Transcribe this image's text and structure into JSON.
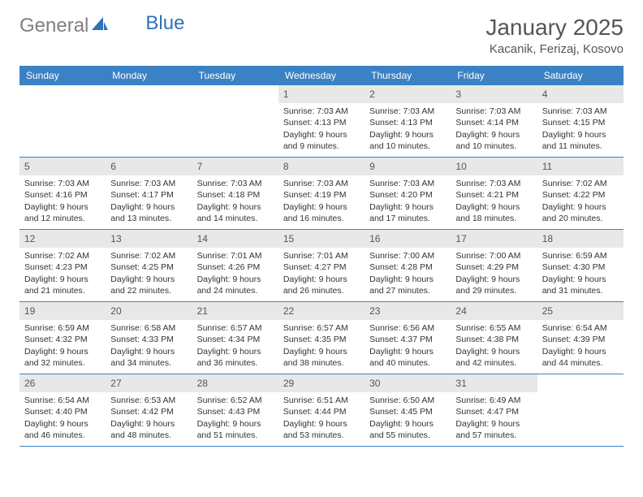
{
  "logo": {
    "text_a": "General",
    "text_b": "Blue"
  },
  "title": "January 2025",
  "location": "Kacanik, Ferizaj, Kosovo",
  "colors": {
    "header_bg": "#3b82c4",
    "header_text": "#ffffff",
    "daynum_bg": "#e8e8e8",
    "border": "#3b82c4",
    "logo_gray": "#808080",
    "logo_blue": "#2e72b8"
  },
  "weekdays": [
    "Sunday",
    "Monday",
    "Tuesday",
    "Wednesday",
    "Thursday",
    "Friday",
    "Saturday"
  ],
  "weeks": [
    [
      {
        "n": "",
        "lines": [
          "",
          "",
          "",
          ""
        ]
      },
      {
        "n": "",
        "lines": [
          "",
          "",
          "",
          ""
        ]
      },
      {
        "n": "",
        "lines": [
          "",
          "",
          "",
          ""
        ]
      },
      {
        "n": "1",
        "lines": [
          "Sunrise: 7:03 AM",
          "Sunset: 4:13 PM",
          "Daylight: 9 hours",
          "and 9 minutes."
        ]
      },
      {
        "n": "2",
        "lines": [
          "Sunrise: 7:03 AM",
          "Sunset: 4:13 PM",
          "Daylight: 9 hours",
          "and 10 minutes."
        ]
      },
      {
        "n": "3",
        "lines": [
          "Sunrise: 7:03 AM",
          "Sunset: 4:14 PM",
          "Daylight: 9 hours",
          "and 10 minutes."
        ]
      },
      {
        "n": "4",
        "lines": [
          "Sunrise: 7:03 AM",
          "Sunset: 4:15 PM",
          "Daylight: 9 hours",
          "and 11 minutes."
        ]
      }
    ],
    [
      {
        "n": "5",
        "lines": [
          "Sunrise: 7:03 AM",
          "Sunset: 4:16 PM",
          "Daylight: 9 hours",
          "and 12 minutes."
        ]
      },
      {
        "n": "6",
        "lines": [
          "Sunrise: 7:03 AM",
          "Sunset: 4:17 PM",
          "Daylight: 9 hours",
          "and 13 minutes."
        ]
      },
      {
        "n": "7",
        "lines": [
          "Sunrise: 7:03 AM",
          "Sunset: 4:18 PM",
          "Daylight: 9 hours",
          "and 14 minutes."
        ]
      },
      {
        "n": "8",
        "lines": [
          "Sunrise: 7:03 AM",
          "Sunset: 4:19 PM",
          "Daylight: 9 hours",
          "and 16 minutes."
        ]
      },
      {
        "n": "9",
        "lines": [
          "Sunrise: 7:03 AM",
          "Sunset: 4:20 PM",
          "Daylight: 9 hours",
          "and 17 minutes."
        ]
      },
      {
        "n": "10",
        "lines": [
          "Sunrise: 7:03 AM",
          "Sunset: 4:21 PM",
          "Daylight: 9 hours",
          "and 18 minutes."
        ]
      },
      {
        "n": "11",
        "lines": [
          "Sunrise: 7:02 AM",
          "Sunset: 4:22 PM",
          "Daylight: 9 hours",
          "and 20 minutes."
        ]
      }
    ],
    [
      {
        "n": "12",
        "lines": [
          "Sunrise: 7:02 AM",
          "Sunset: 4:23 PM",
          "Daylight: 9 hours",
          "and 21 minutes."
        ]
      },
      {
        "n": "13",
        "lines": [
          "Sunrise: 7:02 AM",
          "Sunset: 4:25 PM",
          "Daylight: 9 hours",
          "and 22 minutes."
        ]
      },
      {
        "n": "14",
        "lines": [
          "Sunrise: 7:01 AM",
          "Sunset: 4:26 PM",
          "Daylight: 9 hours",
          "and 24 minutes."
        ]
      },
      {
        "n": "15",
        "lines": [
          "Sunrise: 7:01 AM",
          "Sunset: 4:27 PM",
          "Daylight: 9 hours",
          "and 26 minutes."
        ]
      },
      {
        "n": "16",
        "lines": [
          "Sunrise: 7:00 AM",
          "Sunset: 4:28 PM",
          "Daylight: 9 hours",
          "and 27 minutes."
        ]
      },
      {
        "n": "17",
        "lines": [
          "Sunrise: 7:00 AM",
          "Sunset: 4:29 PM",
          "Daylight: 9 hours",
          "and 29 minutes."
        ]
      },
      {
        "n": "18",
        "lines": [
          "Sunrise: 6:59 AM",
          "Sunset: 4:30 PM",
          "Daylight: 9 hours",
          "and 31 minutes."
        ]
      }
    ],
    [
      {
        "n": "19",
        "lines": [
          "Sunrise: 6:59 AM",
          "Sunset: 4:32 PM",
          "Daylight: 9 hours",
          "and 32 minutes."
        ]
      },
      {
        "n": "20",
        "lines": [
          "Sunrise: 6:58 AM",
          "Sunset: 4:33 PM",
          "Daylight: 9 hours",
          "and 34 minutes."
        ]
      },
      {
        "n": "21",
        "lines": [
          "Sunrise: 6:57 AM",
          "Sunset: 4:34 PM",
          "Daylight: 9 hours",
          "and 36 minutes."
        ]
      },
      {
        "n": "22",
        "lines": [
          "Sunrise: 6:57 AM",
          "Sunset: 4:35 PM",
          "Daylight: 9 hours",
          "and 38 minutes."
        ]
      },
      {
        "n": "23",
        "lines": [
          "Sunrise: 6:56 AM",
          "Sunset: 4:37 PM",
          "Daylight: 9 hours",
          "and 40 minutes."
        ]
      },
      {
        "n": "24",
        "lines": [
          "Sunrise: 6:55 AM",
          "Sunset: 4:38 PM",
          "Daylight: 9 hours",
          "and 42 minutes."
        ]
      },
      {
        "n": "25",
        "lines": [
          "Sunrise: 6:54 AM",
          "Sunset: 4:39 PM",
          "Daylight: 9 hours",
          "and 44 minutes."
        ]
      }
    ],
    [
      {
        "n": "26",
        "lines": [
          "Sunrise: 6:54 AM",
          "Sunset: 4:40 PM",
          "Daylight: 9 hours",
          "and 46 minutes."
        ]
      },
      {
        "n": "27",
        "lines": [
          "Sunrise: 6:53 AM",
          "Sunset: 4:42 PM",
          "Daylight: 9 hours",
          "and 48 minutes."
        ]
      },
      {
        "n": "28",
        "lines": [
          "Sunrise: 6:52 AM",
          "Sunset: 4:43 PM",
          "Daylight: 9 hours",
          "and 51 minutes."
        ]
      },
      {
        "n": "29",
        "lines": [
          "Sunrise: 6:51 AM",
          "Sunset: 4:44 PM",
          "Daylight: 9 hours",
          "and 53 minutes."
        ]
      },
      {
        "n": "30",
        "lines": [
          "Sunrise: 6:50 AM",
          "Sunset: 4:45 PM",
          "Daylight: 9 hours",
          "and 55 minutes."
        ]
      },
      {
        "n": "31",
        "lines": [
          "Sunrise: 6:49 AM",
          "Sunset: 4:47 PM",
          "Daylight: 9 hours",
          "and 57 minutes."
        ]
      },
      {
        "n": "",
        "lines": [
          "",
          "",
          "",
          ""
        ]
      }
    ]
  ]
}
